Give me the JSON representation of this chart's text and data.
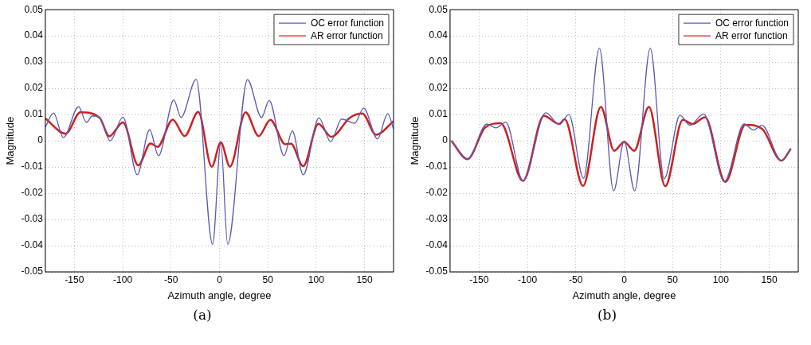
{
  "chart_data": [
    {
      "type": "line",
      "xlabel": "Azimuth angle, degree",
      "ylabel": "Magnitude",
      "xlim": [
        -180,
        180
      ],
      "ylim": [
        -0.05,
        0.05
      ],
      "xticks": [
        -150,
        -100,
        -50,
        0,
        50,
        100,
        150
      ],
      "yticks": [
        -0.05,
        -0.04,
        -0.03,
        -0.02,
        -0.01,
        0,
        0.01,
        0.02,
        0.03,
        0.04,
        0.05
      ],
      "grid": true,
      "legend": "top right",
      "annotations": [
        "(a)"
      ],
      "series": [
        {
          "name": "OC error function",
          "color": "#5a5ab4",
          "x": [
            -180,
            -171.6,
            -161.4,
            -145.7,
            -137.5,
            -131.5,
            -123.9,
            -113,
            -99.7,
            -85,
            -72.2,
            -63,
            -47.2,
            -39.8,
            -24.1,
            -7.1,
            1.4,
            8.5,
            29,
            43.5,
            51.4,
            66.8,
            75.3,
            86.6,
            102.8,
            115,
            126.4,
            139.8,
            149.1,
            163.4,
            174,
            180
          ],
          "values": [
            0.0052,
            0.0106,
            0.0012,
            0.013,
            0.007,
            0.0095,
            0.0088,
            0,
            0.009,
            -0.0129,
            0.0042,
            -0.0057,
            0.0156,
            0.0089,
            0.0234,
            -0.0395,
            -0.0008,
            -0.0395,
            0.0233,
            0.0089,
            0.0154,
            -0.0057,
            0.0038,
            -0.013,
            0.0087,
            -0.0003,
            0.0083,
            0.0067,
            0.0124,
            0.0007,
            0.0104,
            0.0045
          ]
        },
        {
          "name": "AR error function",
          "color": "#cc2222",
          "x": [
            -180,
            -159,
            -143.8,
            -123.9,
            -114,
            -99.7,
            -84,
            -71.3,
            -64,
            -48.3,
            -36,
            -21.9,
            -8,
            1.4,
            10.8,
            27,
            40.6,
            52.6,
            68,
            73.9,
            86.6,
            102.3,
            115.6,
            135,
            147.7,
            162,
            180
          ],
          "values": [
            0.0085,
            0.0027,
            0.0109,
            0.0088,
            0.0017,
            0.007,
            -0.0094,
            -0.001,
            -0.0023,
            0.0081,
            0.0018,
            0.011,
            -0.0099,
            -0.0006,
            -0.0099,
            0.0109,
            0.0018,
            0.008,
            -0.0013,
            -0.0011,
            -0.0097,
            0.0065,
            0.0015,
            0.0088,
            0.0104,
            0.0023,
            0.0075
          ]
        }
      ]
    },
    {
      "type": "line",
      "xlabel": "Azimuth angle, degree",
      "ylabel": "Magnitude",
      "xlim": [
        -180,
        180
      ],
      "ylim": [
        -0.05,
        0.05
      ],
      "xticks": [
        -150,
        -100,
        -50,
        0,
        50,
        100,
        150
      ],
      "yticks": [
        -0.05,
        -0.04,
        -0.03,
        -0.02,
        -0.01,
        0,
        0.01,
        0.02,
        0.03,
        0.04,
        0.05
      ],
      "grid": true,
      "legend": "top right",
      "annotations": [
        "(b)"
      ],
      "series": [
        {
          "name": "OC error function",
          "color": "#5a5ab4",
          "x": [
            -178.7,
            -162,
            -141.9,
            -132.5,
            -122.4,
            -104.6,
            -81,
            -67.2,
            -57.2,
            -42,
            -25.6,
            -10.9,
            0,
            10.9,
            27,
            41.4,
            57.8,
            67.8,
            82.2,
            103.7,
            123.9,
            133.9,
            142.5,
            162.6,
            172.4
          ],
          "values": [
            0,
            -0.007,
            0.0064,
            0.0049,
            0.0071,
            -0.0153,
            0.0107,
            0.0062,
            0.01,
            -0.0143,
            0.0353,
            -0.0191,
            -0.0002,
            -0.0191,
            0.0353,
            -0.0145,
            0.0098,
            0.0059,
            0.0102,
            -0.0155,
            0.0064,
            0.0041,
            0.0059,
            -0.0076,
            -0.003
          ]
        },
        {
          "name": "AR error function",
          "color": "#cc2222",
          "x": [
            -178.7,
            -162,
            -143.4,
            -127.6,
            -104.6,
            -83,
            -67.2,
            -61.5,
            -42.5,
            -24.1,
            -10.3,
            0,
            10.3,
            25.6,
            42.5,
            60.6,
            70.7,
            83.6,
            104.6,
            125.3,
            142.5,
            162.6,
            172.4
          ],
          "values": [
            0,
            -0.007,
            0.0052,
            0.0067,
            -0.0153,
            0.0095,
            0.0064,
            0.0082,
            -0.0172,
            0.0129,
            -0.0038,
            -0.0004,
            -0.0038,
            0.0129,
            -0.0173,
            0.008,
            0.0064,
            0.009,
            -0.0157,
            0.0061,
            0.0046,
            -0.0076,
            -0.003
          ]
        }
      ]
    }
  ]
}
